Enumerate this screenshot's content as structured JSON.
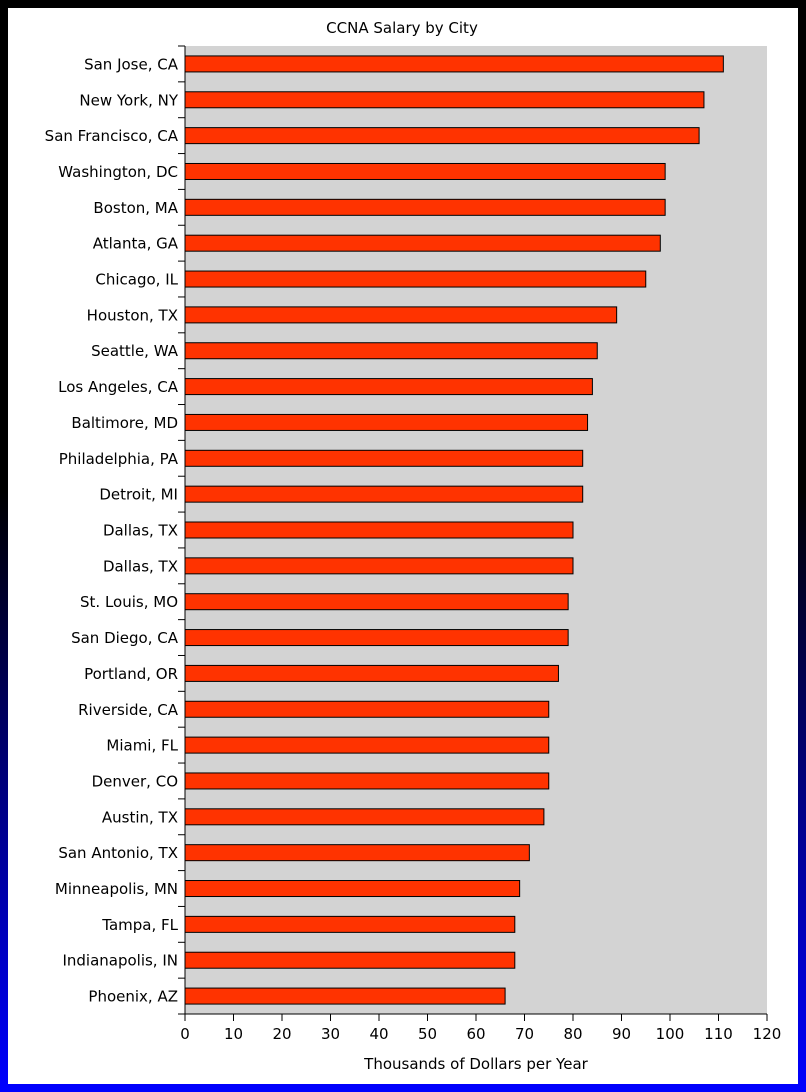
{
  "chart_data": {
    "type": "bar",
    "orientation": "horizontal",
    "title": "CCNA Salary by City",
    "xlabel": "Thousands of Dollars per Year",
    "ylabel": "",
    "xlim": [
      0,
      120
    ],
    "xticks": [
      0,
      10,
      20,
      30,
      40,
      50,
      60,
      70,
      80,
      90,
      100,
      110,
      120
    ],
    "categories": [
      "San Jose, CA",
      "New York, NY",
      "San Francisco, CA",
      "Washington, DC",
      "Boston, MA",
      "Atlanta, GA",
      "Chicago, IL",
      "Houston, TX",
      "Seattle, WA",
      "Los Angeles, CA",
      "Baltimore, MD",
      "Philadelphia, PA",
      "Detroit, MI",
      "Dallas, TX",
      "Dallas, TX",
      "St. Louis, MO",
      "San Diego, CA",
      "Portland, OR",
      "Riverside, CA",
      "Miami, FL",
      "Denver, CO",
      "Austin, TX",
      "San Antonio, TX",
      "Minneapolis, MN",
      "Tampa, FL",
      "Indianapolis, IN",
      "Phoenix, AZ"
    ],
    "values": [
      111,
      107,
      106,
      99,
      99,
      98,
      95,
      89,
      85,
      84,
      83,
      82,
      82,
      80,
      80,
      79,
      79,
      77,
      75,
      75,
      75,
      74,
      71,
      69,
      68,
      68,
      66
    ],
    "colors": {
      "bar": "#ff3300",
      "plot_background": "#d3d3d3",
      "frame_background": "#ffffff",
      "border_top": "#000000",
      "border_bottom": "#0000ff"
    },
    "grid": false,
    "legend": "none"
  }
}
